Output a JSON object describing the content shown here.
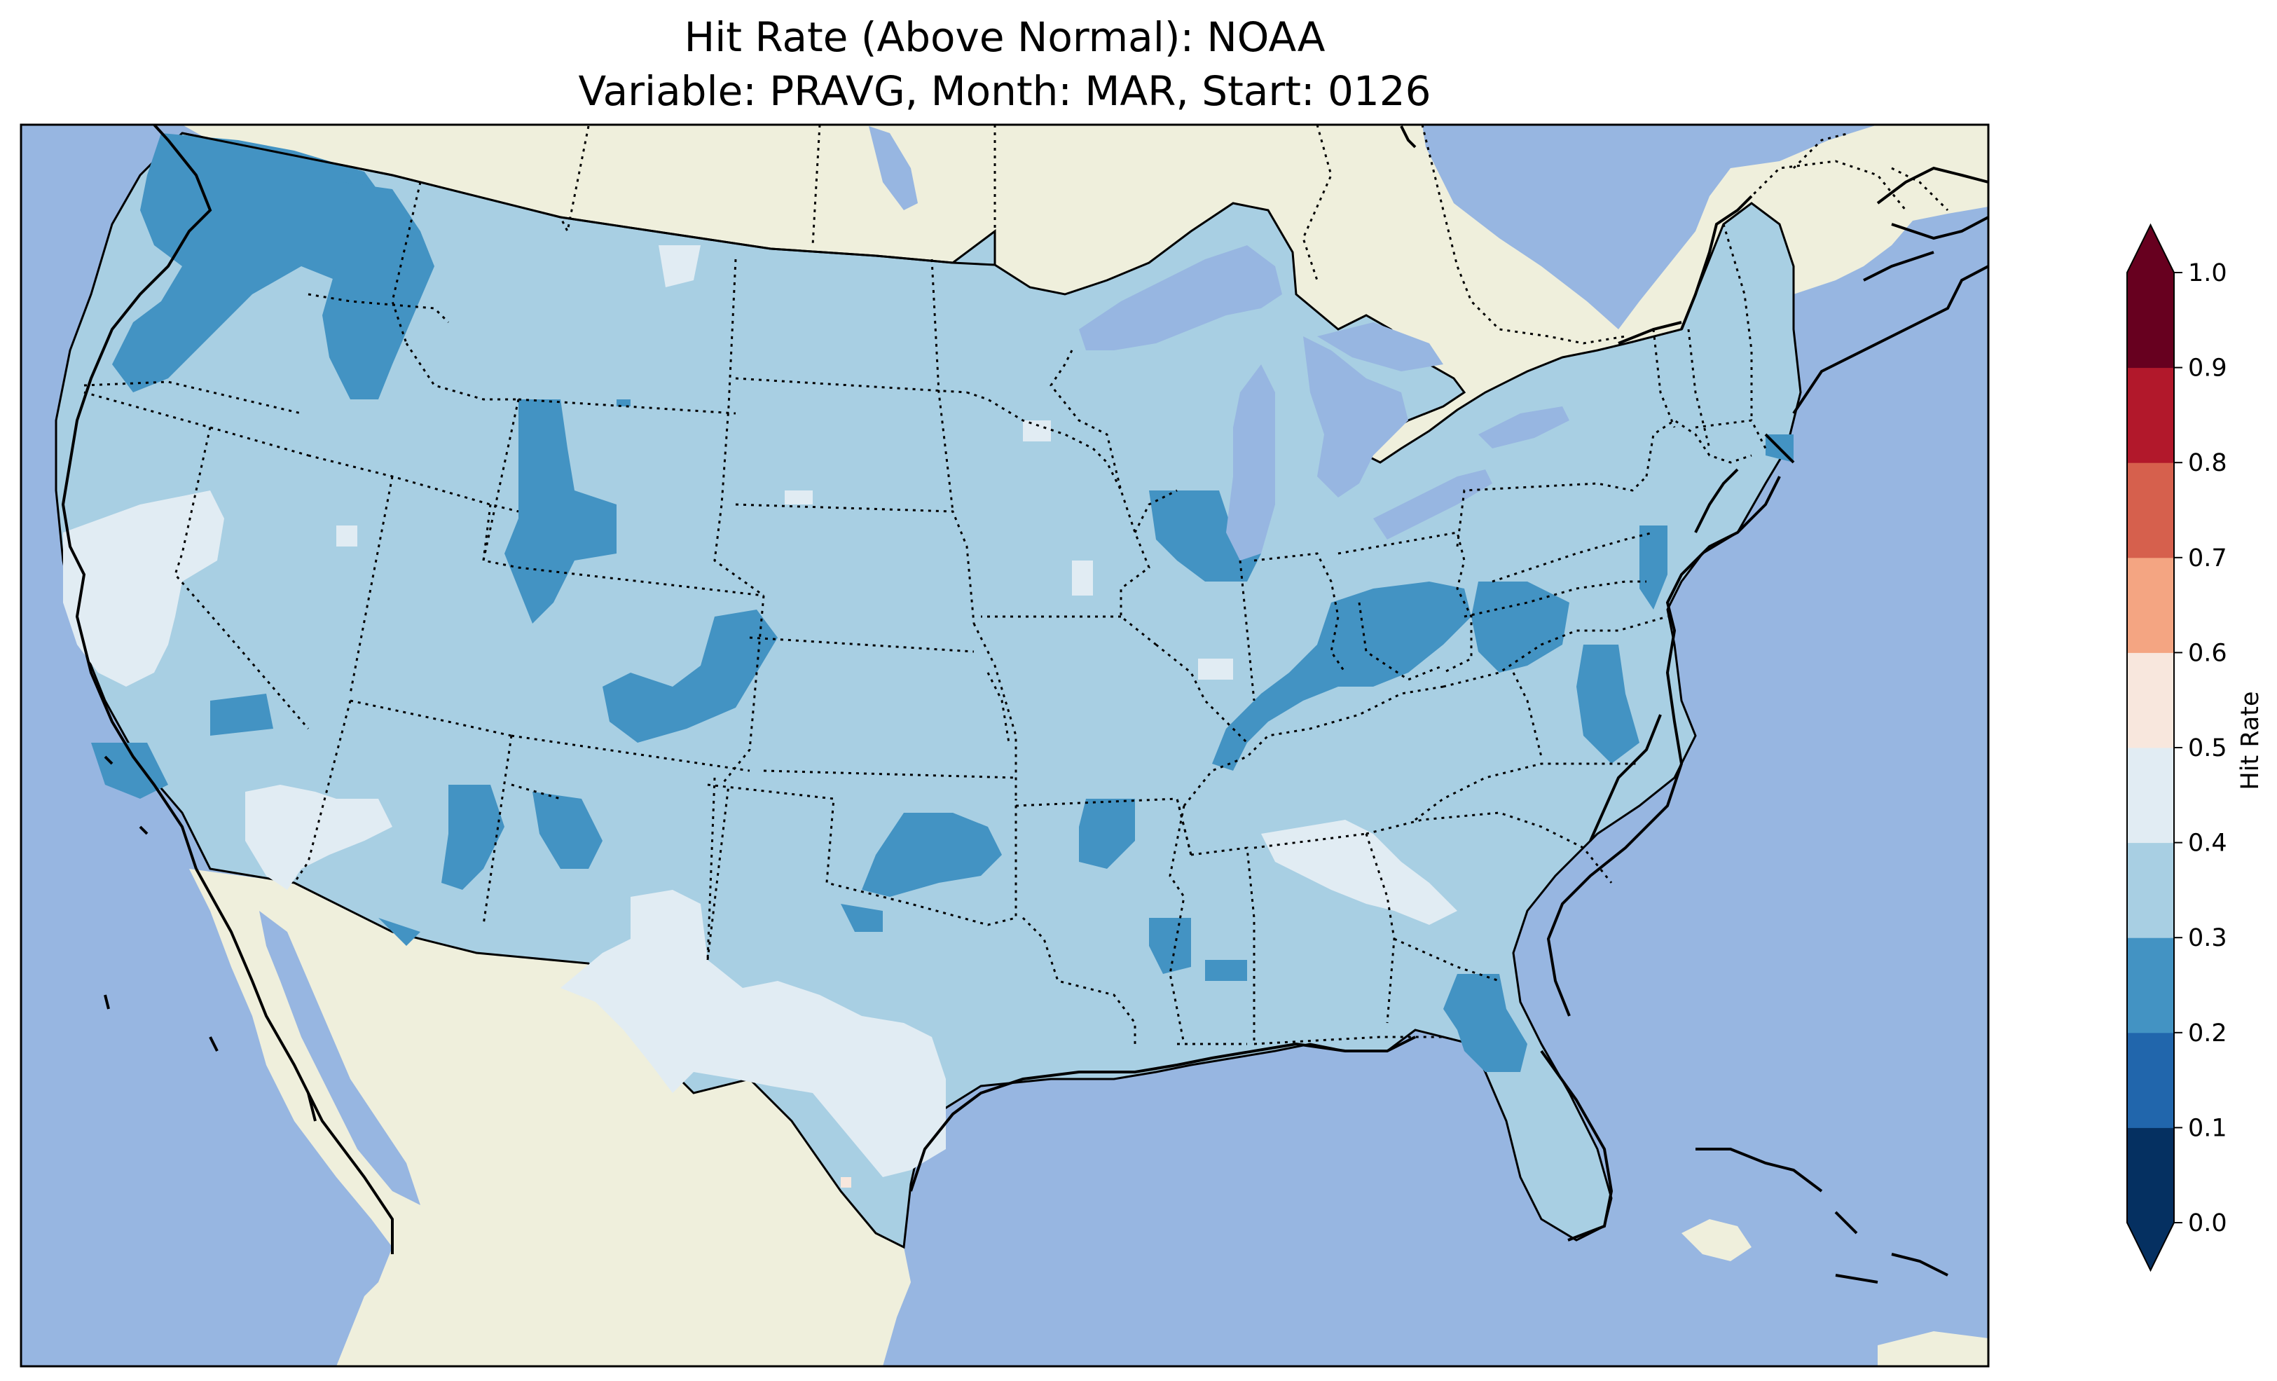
{
  "title": {
    "line1": "Hit Rate (Above Normal): NOAA",
    "line2": "Variable: PRAVG, Month: MAR, Start: 0126"
  },
  "colors": {
    "ocean": "#97b6e1",
    "land": "#efefdc",
    "lakes": "#97b6e1"
  },
  "chart_data": {
    "type": "heatmap",
    "title": "Hit Rate (Above Normal): NOAA",
    "subtitle": "Variable: PRAVG, Month: MAR, Start: 0126",
    "colorbar": {
      "label": "Hit Rate",
      "ticks": [
        "0.0",
        "0.1",
        "0.2",
        "0.3",
        "0.4",
        "0.5",
        "0.6",
        "0.7",
        "0.8",
        "0.9",
        "1.0"
      ],
      "bins": [
        {
          "range": [
            0.0,
            0.1
          ],
          "color": "#053061"
        },
        {
          "range": [
            0.1,
            0.2
          ],
          "color": "#2166ac"
        },
        {
          "range": [
            0.2,
            0.3
          ],
          "color": "#4393c3"
        },
        {
          "range": [
            0.3,
            0.4
          ],
          "color": "#a8cfe3"
        },
        {
          "range": [
            0.4,
            0.5
          ],
          "color": "#e1ecf3"
        },
        {
          "range": [
            0.5,
            0.6
          ],
          "color": "#f8e7dd"
        },
        {
          "range": [
            0.6,
            0.7
          ],
          "color": "#f4a582"
        },
        {
          "range": [
            0.7,
            0.8
          ],
          "color": "#d6604d"
        },
        {
          "range": [
            0.8,
            0.9
          ],
          "color": "#b2182b"
        },
        {
          "range": [
            0.9,
            1.0
          ],
          "color": "#67001f"
        }
      ],
      "extend": "both",
      "placement": "right"
    },
    "region": "Contiguous United States",
    "dominant_range": [
      0.3,
      0.4
    ]
  }
}
